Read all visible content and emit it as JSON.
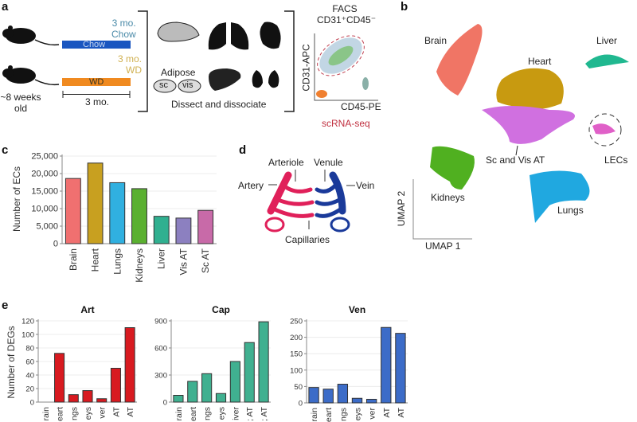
{
  "panel_labels": {
    "a": "a",
    "b": "b",
    "c": "c",
    "d": "d",
    "e": "e"
  },
  "panel_a": {
    "chow_diet": "3 mo. Chow",
    "chow_line1": "3 mo.",
    "chow_line2": "Chow",
    "chow_bar": "Chow",
    "wd_line1": "3 mo.",
    "wd_line2": "WD",
    "wd_bar": "WD",
    "age_line1": "~8 weeks",
    "age_line2": "old",
    "duration": "3 mo.",
    "adipose": "Adipose",
    "sc": "sc",
    "vis": "vis",
    "dissect": "Dissect and dissociate",
    "facs_line1": "FACS",
    "facs_line2": "CD31⁺CD45⁻",
    "facs_y": "CD31-APC",
    "facs_x": "CD45-PE",
    "scrna": "scRNA-seq",
    "colors": {
      "chow": "#1a56c0",
      "wd": "#f08a20",
      "chow_text": "#4a8aa8",
      "wd_text": "#d0b050",
      "scrna": "#c03040"
    }
  },
  "panel_b": {
    "clusters": [
      {
        "label": "Brain",
        "color": "#f07565"
      },
      {
        "label": "Liver",
        "color": "#20b890"
      },
      {
        "label": "Heart",
        "color": "#c89a10"
      },
      {
        "label": "Sc and Vis AT",
        "color": "#d070e0"
      },
      {
        "label": "LECs",
        "color": "#e060c8"
      },
      {
        "label": "Kidneys",
        "color": "#50b020"
      },
      {
        "label": "Lungs",
        "color": "#20a8e0"
      }
    ],
    "xaxis": "UMAP 1",
    "yaxis": "UMAP 2"
  },
  "panel_d": {
    "artery": "Artery",
    "arteriole": "Arteriole",
    "venule": "Venule",
    "vein": "Vein",
    "capillaries": "Capillaries",
    "colors": {
      "arterial": "#e0205a",
      "venous": "#1a3a9a"
    }
  },
  "chart_data": [
    {
      "type": "bar",
      "ylabel": "Number of ECs",
      "categories": [
        "Brain",
        "Heart",
        "Lungs",
        "Kidneys",
        "Liver",
        "Vis AT",
        "Sc AT"
      ],
      "values": [
        18600,
        23000,
        17400,
        15700,
        7800,
        7300,
        9500
      ],
      "colors": [
        "#f07070",
        "#c8a020",
        "#30b0e0",
        "#5ab030",
        "#30b090",
        "#8c80c0",
        "#c86aa8"
      ],
      "yticks": [
        0,
        5000,
        10000,
        15000,
        20000,
        25000
      ],
      "ytick_labels": [
        "0",
        "5,000",
        "10,000",
        "15,000",
        "20,000",
        "25,000"
      ],
      "ylim": [
        0,
        25000
      ],
      "grid": true
    },
    {
      "type": "bar",
      "title": "Art",
      "ylabel": "Number of DEGs",
      "categories": [
        "rain",
        "eart",
        "ngs",
        "eys",
        "ver",
        "AT",
        "AT"
      ],
      "values": [
        0,
        72,
        11,
        17,
        5,
        50,
        110
      ],
      "color": "#d81a20",
      "yticks": [
        0,
        20,
        40,
        60,
        80,
        100,
        120
      ],
      "ytick_labels": [
        "0",
        "20",
        "40",
        "60",
        "80",
        "100",
        "120"
      ],
      "ylim": [
        0,
        120
      ],
      "grid": true
    },
    {
      "type": "bar",
      "title": "Cap",
      "categories": [
        "rain",
        "eart",
        "ngs",
        "eys",
        "iver",
        "; AT",
        "; AT"
      ],
      "values": [
        75,
        230,
        315,
        95,
        450,
        660,
        890
      ],
      "color": "#40b090",
      "yticks": [
        0,
        300,
        600,
        900
      ],
      "ytick_labels": [
        "0",
        "300",
        "600",
        "900"
      ],
      "ylim": [
        0,
        900
      ],
      "grid": true
    },
    {
      "type": "bar",
      "title": "Ven",
      "categories": [
        "rain",
        "eart",
        "ngs",
        "eys",
        "ver",
        "AT",
        "AT"
      ],
      "values": [
        47,
        42,
        57,
        14,
        11,
        230,
        212
      ],
      "color": "#3c6cc8",
      "yticks": [
        0,
        50,
        100,
        150,
        200,
        250
      ],
      "ytick_labels": [
        "0",
        "50",
        "100",
        "150",
        "200",
        "250"
      ],
      "ylim": [
        0,
        250
      ],
      "grid": true
    }
  ]
}
